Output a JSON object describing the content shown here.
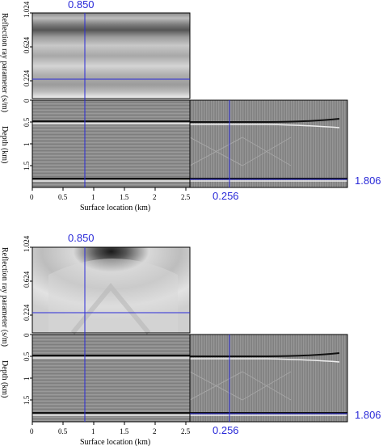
{
  "panels": [
    {
      "id": "top",
      "crosshair_labels": {
        "ray_parameter": "0.850",
        "surface_location": "0.256",
        "depth": "1.806"
      },
      "y_axis_upper": {
        "label": "Reflection ray parameter (s/m)",
        "ticks": [
          "1.024",
          "0.624",
          "0.224"
        ]
      },
      "y_axis_lower": {
        "label": "Depth (km)",
        "ticks": [
          "0",
          "0.5",
          "1",
          "1.5"
        ]
      },
      "x_axis": {
        "label": "Surface location (km)",
        "ticks": [
          "0",
          "0.5",
          "1",
          "1.5",
          "2",
          "2.5"
        ]
      }
    },
    {
      "id": "bottom",
      "crosshair_labels": {
        "ray_parameter": "0.850",
        "surface_location": "0.256",
        "depth": "1.806"
      },
      "y_axis_upper": {
        "label": "Reflection ray parameter (s/m)",
        "ticks": [
          "1.024",
          "0.624",
          "0.224"
        ]
      },
      "y_axis_lower": {
        "label": "Depth (km)",
        "ticks": [
          "0",
          "0.5",
          "1",
          "1.5"
        ]
      },
      "x_axis": {
        "label": "Surface location (km)",
        "ticks": [
          "0",
          "0.5",
          "1",
          "1.5",
          "2",
          "2.5"
        ]
      }
    }
  ],
  "colors": {
    "crosshair": "#2a2ad8",
    "frame": "#000000"
  }
}
